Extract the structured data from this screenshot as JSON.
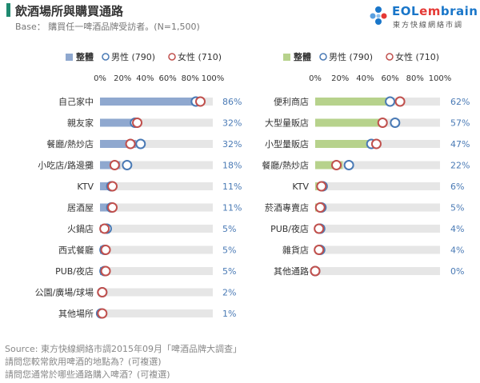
{
  "header": {
    "title": "飲酒場所與購買通路",
    "base": "Base： 購買任一啤酒品牌受訪者。(N=1,500)"
  },
  "logo": {
    "text_main_a": "EOL",
    "text_main_b": "em",
    "text_main_c": "brain",
    "subtitle": "東方快線網絡市調"
  },
  "colors": {
    "total_bar_left": "#8fa8cf",
    "total_bar_right": "#b7d28c",
    "male": "#4a7ab5",
    "female": "#c0504d",
    "track": "#e6e6e6",
    "pct_text": "#4a7ab5"
  },
  "legend": {
    "total": "整體",
    "male": "男性 (790)",
    "female": "女性 (710)"
  },
  "chart_data": [
    {
      "type": "bar",
      "axis_ticks": [
        "0%",
        "20%",
        "40%",
        "60%",
        "80%",
        "100%"
      ],
      "xlim": [
        0,
        100
      ],
      "categories": [
        "自己家中",
        "親友家",
        "餐廳/熱炒店",
        "小吃店/路邊攤",
        "KTV",
        "居酒屋",
        "火鍋店",
        "西式餐廳",
        "PUB/夜店",
        "公園/廣場/球場",
        "其他場所"
      ],
      "total_labels": [
        "86%",
        "32%",
        "32%",
        "18%",
        "11%",
        "11%",
        "5%",
        "5%",
        "5%",
        "2%",
        "1%"
      ],
      "series": [
        {
          "name": "整體",
          "values": [
            86,
            32,
            32,
            18,
            11,
            11,
            5,
            5,
            5,
            2,
            1
          ]
        },
        {
          "name": "男性 (790)",
          "values": [
            85,
            31,
            36,
            24,
            10,
            10,
            6,
            4,
            4,
            2,
            1
          ]
        },
        {
          "name": "女性 (710)",
          "values": [
            89,
            33,
            27,
            13,
            11,
            11,
            4,
            5,
            5,
            2,
            2
          ]
        }
      ]
    },
    {
      "type": "bar",
      "axis_ticks": [
        "0%",
        "20%",
        "40%",
        "60%",
        "80%",
        "100%"
      ],
      "xlim": [
        0,
        100
      ],
      "categories": [
        "便利商店",
        "大型量販店",
        "小型量販店",
        "餐廳/熱炒店",
        "KTV",
        "菸酒專賣店",
        "PUB/夜店",
        "雜貨店",
        "其他通路"
      ],
      "total_labels": [
        "62%",
        "57%",
        "47%",
        "22%",
        "6%",
        "5%",
        "4%",
        "4%",
        "0%"
      ],
      "series": [
        {
          "name": "整體",
          "values": [
            62,
            57,
            47,
            22,
            6,
            5,
            4,
            4,
            0
          ]
        },
        {
          "name": "男性 (790)",
          "values": [
            60,
            64,
            45,
            27,
            6,
            5,
            4,
            4,
            0
          ]
        },
        {
          "name": "女性 (710)",
          "values": [
            68,
            54,
            49,
            17,
            5,
            4,
            3,
            3,
            0
          ]
        }
      ]
    }
  ],
  "footer": {
    "source": "Source: 東方快線網絡市調2015年09月「啤酒品牌大調查」",
    "q1": "請問您較常飲用啤酒的地點為？(可複選)",
    "q2": "請問您通常於哪些通路購入啤酒？(可複選)"
  }
}
